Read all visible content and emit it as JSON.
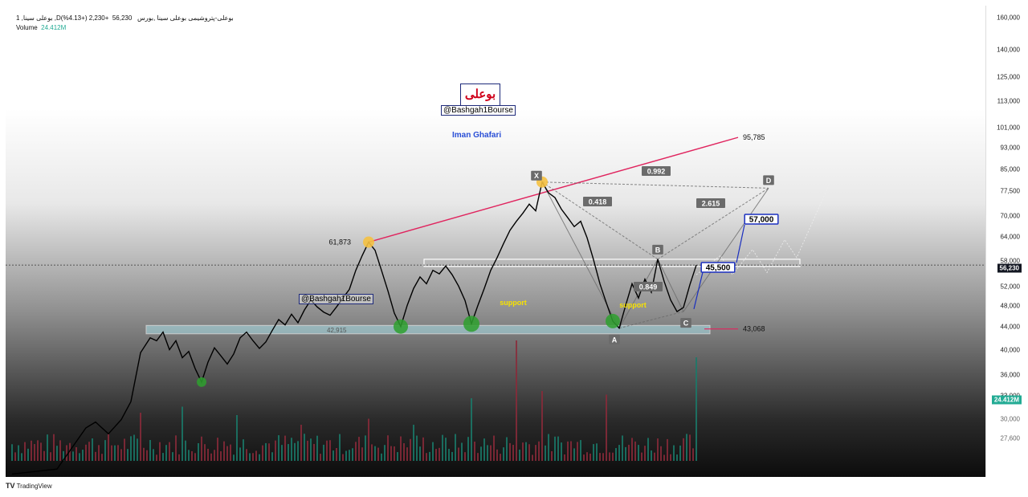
{
  "header": {
    "symbol_line": "1 ,بوعلی سینا ,Dبوعلی-پتروشیمی بوعلی سینا ,بورس",
    "price": "56,230",
    "change": "+2,230 (+4.13%)",
    "volume_label": "Volume",
    "volume_value": "24.412M"
  },
  "watermark": {
    "logo_text": "بوعلی",
    "handle": "@Bashgah1Bourse",
    "author": "Iman Ghafari"
  },
  "footer": {
    "brand": "TradingView",
    "logo": "TV"
  },
  "colors": {
    "resistance": "#e0245e",
    "support_fill": "#a7d8e0",
    "pivot_green": "#2ea02e",
    "pivot_yellow": "#f5c141",
    "pattern_line": "#6b6b6b",
    "annot_blue": "#1a2fbf"
  },
  "chart_data": {
    "type": "line",
    "y_scale": "log",
    "ylim": [
      25000,
      160000
    ],
    "y_ticks": [
      "160,000",
      "140,000",
      "125,000",
      "113,000",
      "101,000",
      "93,000",
      "85,000",
      "77,500",
      "70,000",
      "64,000",
      "58,000",
      "52,000",
      "48,000",
      "44,000",
      "40,000",
      "36,000",
      "33,000",
      "30,000",
      "27,600"
    ],
    "current_price_tag": "56,230",
    "volume_tag": "24.412M",
    "price_series": [
      {
        "i": 0,
        "y": 23500
      },
      {
        "i": 14,
        "y": 24000
      },
      {
        "i": 23,
        "y": 28500
      },
      {
        "i": 26,
        "y": 29200
      },
      {
        "i": 30,
        "y": 27800
      },
      {
        "i": 34,
        "y": 29500
      },
      {
        "i": 37,
        "y": 31800
      },
      {
        "i": 40,
        "y": 39000
      },
      {
        "i": 43,
        "y": 41500
      },
      {
        "i": 45,
        "y": 41000
      },
      {
        "i": 47,
        "y": 42500
      },
      {
        "i": 49,
        "y": 39500
      },
      {
        "i": 51,
        "y": 41000
      },
      {
        "i": 53,
        "y": 38200
      },
      {
        "i": 55,
        "y": 39200
      },
      {
        "i": 57,
        "y": 36500
      },
      {
        "i": 59,
        "y": 34500
      },
      {
        "i": 61,
        "y": 37500
      },
      {
        "i": 63,
        "y": 39800
      },
      {
        "i": 65,
        "y": 38500
      },
      {
        "i": 67,
        "y": 37200
      },
      {
        "i": 69,
        "y": 38800
      },
      {
        "i": 71,
        "y": 41500
      },
      {
        "i": 73,
        "y": 42500
      },
      {
        "i": 75,
        "y": 41000
      },
      {
        "i": 77,
        "y": 39700
      },
      {
        "i": 79,
        "y": 40800
      },
      {
        "i": 81,
        "y": 42800
      },
      {
        "i": 83,
        "y": 44800
      },
      {
        "i": 85,
        "y": 43800
      },
      {
        "i": 87,
        "y": 45800
      },
      {
        "i": 89,
        "y": 44200
      },
      {
        "i": 91,
        "y": 46600
      },
      {
        "i": 93,
        "y": 48600
      },
      {
        "i": 95,
        "y": 47200
      },
      {
        "i": 97,
        "y": 46200
      },
      {
        "i": 99,
        "y": 45600
      },
      {
        "i": 101,
        "y": 47200
      },
      {
        "i": 103,
        "y": 49000
      },
      {
        "i": 105,
        "y": 50800
      },
      {
        "i": 107,
        "y": 55000
      },
      {
        "i": 109,
        "y": 58500
      },
      {
        "i": 111,
        "y": 61873
      },
      {
        "i": 113,
        "y": 59800
      },
      {
        "i": 115,
        "y": 55000
      },
      {
        "i": 117,
        "y": 50500
      },
      {
        "i": 119,
        "y": 46000
      },
      {
        "i": 121,
        "y": 43500
      },
      {
        "i": 123,
        "y": 47500
      },
      {
        "i": 125,
        "y": 51000
      },
      {
        "i": 127,
        "y": 53500
      },
      {
        "i": 129,
        "y": 52000
      },
      {
        "i": 131,
        "y": 55000
      },
      {
        "i": 133,
        "y": 54200
      },
      {
        "i": 135,
        "y": 56000
      },
      {
        "i": 137,
        "y": 54000
      },
      {
        "i": 139,
        "y": 51500
      },
      {
        "i": 141,
        "y": 48500
      },
      {
        "i": 143,
        "y": 44000
      },
      {
        "i": 145,
        "y": 47500
      },
      {
        "i": 147,
        "y": 51000
      },
      {
        "i": 149,
        "y": 55000
      },
      {
        "i": 151,
        "y": 58000
      },
      {
        "i": 153,
        "y": 61500
      },
      {
        "i": 155,
        "y": 65000
      },
      {
        "i": 157,
        "y": 67500
      },
      {
        "i": 159,
        "y": 69800
      },
      {
        "i": 161,
        "y": 72500
      },
      {
        "i": 163,
        "y": 70500
      },
      {
        "i": 165,
        "y": 79500
      },
      {
        "i": 167,
        "y": 76000
      },
      {
        "i": 169,
        "y": 74500
      },
      {
        "i": 171,
        "y": 71000
      },
      {
        "i": 173,
        "y": 68500
      },
      {
        "i": 175,
        "y": 66000
      },
      {
        "i": 177,
        "y": 67500
      },
      {
        "i": 179,
        "y": 63000
      },
      {
        "i": 181,
        "y": 57500
      },
      {
        "i": 183,
        "y": 52000
      },
      {
        "i": 185,
        "y": 48000
      },
      {
        "i": 187,
        "y": 44500
      },
      {
        "i": 189,
        "y": 43200
      },
      {
        "i": 191,
        "y": 47500
      },
      {
        "i": 193,
        "y": 52000
      },
      {
        "i": 195,
        "y": 49000
      },
      {
        "i": 197,
        "y": 53000
      },
      {
        "i": 199,
        "y": 50200
      },
      {
        "i": 201,
        "y": 57600
      },
      {
        "i": 203,
        "y": 52500
      },
      {
        "i": 205,
        "y": 48600
      },
      {
        "i": 207,
        "y": 46300
      },
      {
        "i": 209,
        "y": 47100
      },
      {
        "i": 211,
        "y": 51800
      },
      {
        "i": 213,
        "y": 56230
      }
    ],
    "volume_peaks": [
      {
        "i": 40,
        "v": 0.4
      },
      {
        "i": 53,
        "v": 0.45
      },
      {
        "i": 70,
        "v": 0.38
      },
      {
        "i": 90,
        "v": 0.3
      },
      {
        "i": 111,
        "v": 0.35
      },
      {
        "i": 125,
        "v": 0.3
      },
      {
        "i": 143,
        "v": 0.52
      },
      {
        "i": 157,
        "v": 1.0
      },
      {
        "i": 165,
        "v": 0.58
      },
      {
        "i": 185,
        "v": 0.55
      },
      {
        "i": 213,
        "v": 0.86
      }
    ],
    "levels": [
      {
        "label": "95,785",
        "value": 95785
      },
      {
        "label": "61,873",
        "value": 61873
      },
      {
        "label": "43,068",
        "value": 43068
      }
    ],
    "annotations": {
      "support_text": "support",
      "support_zone_label": "42,915",
      "target_1": "57,000",
      "target_2": "45,500",
      "pattern": {
        "X": "X",
        "A": "A",
        "B": "B",
        "C": "C",
        "D": "D"
      },
      "ratios": {
        "xb": "0.418",
        "xd": "0.992",
        "bd": "2.615",
        "ac": "0.849"
      }
    }
  }
}
